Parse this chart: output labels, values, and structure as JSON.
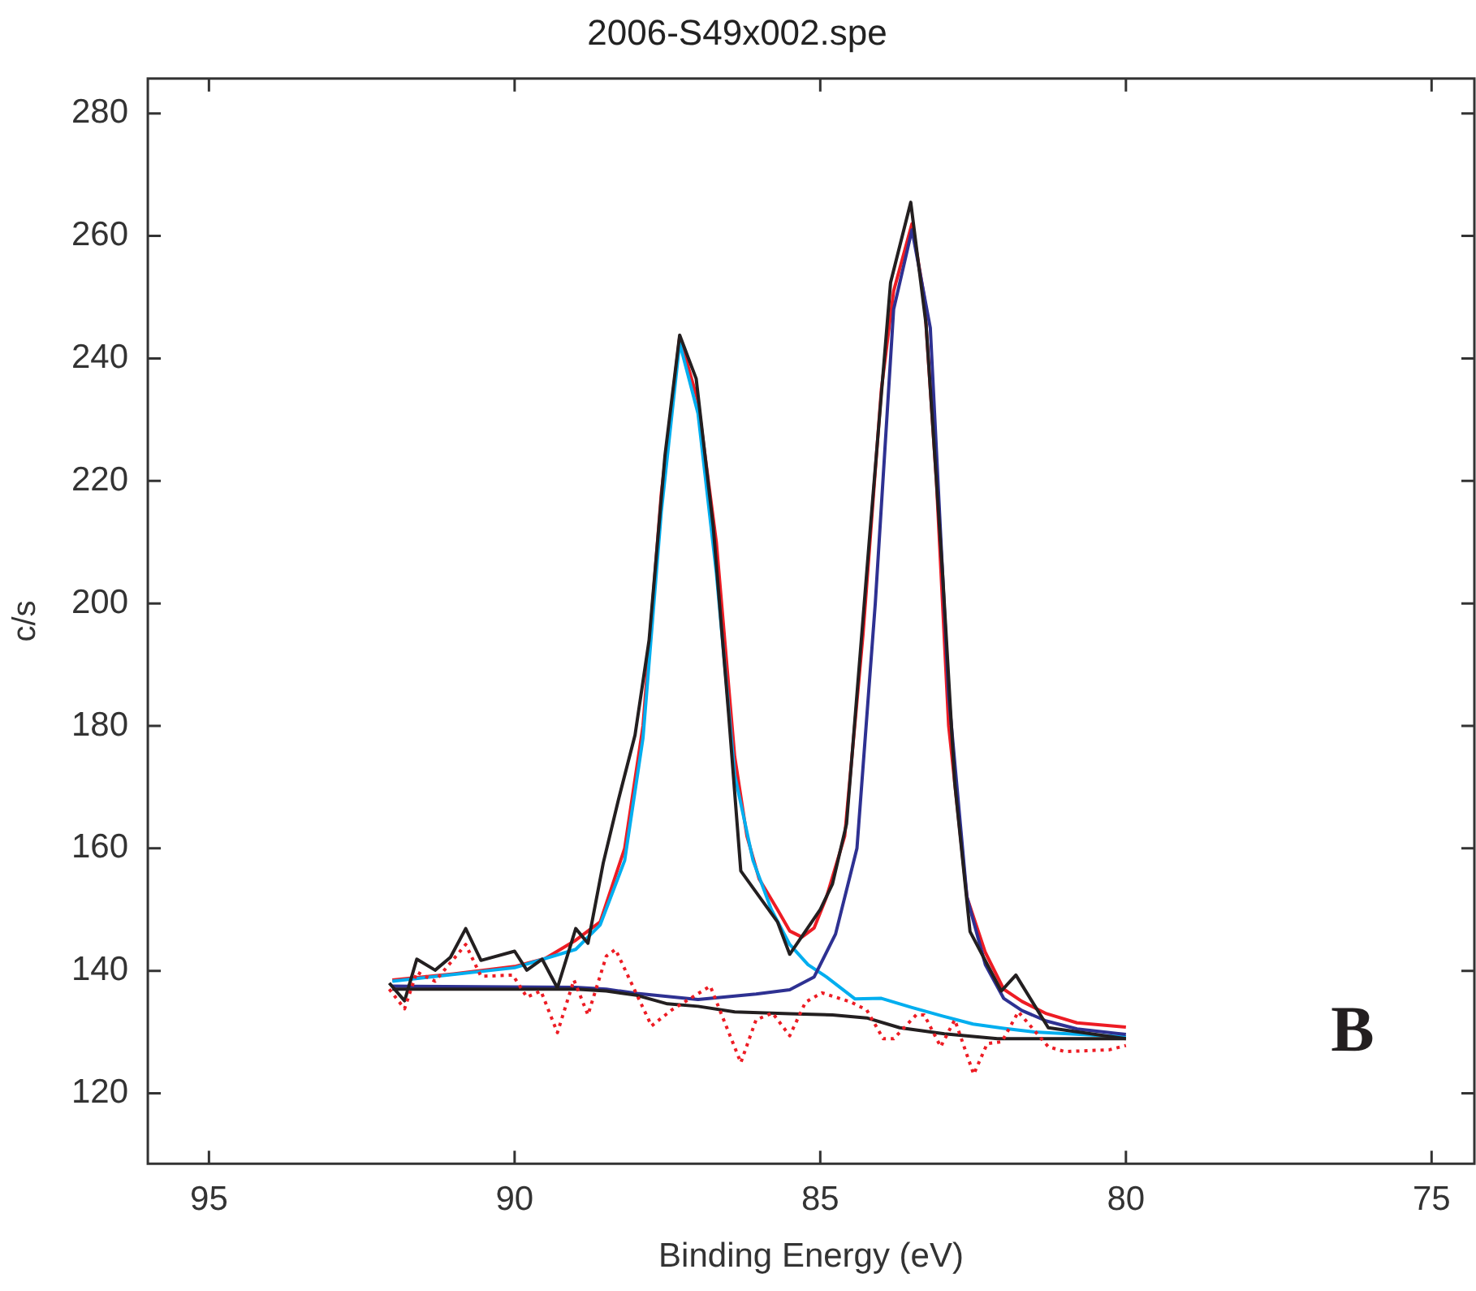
{
  "chart_data": {
    "type": "line",
    "title": "2006-S49x002.spe",
    "xlabel": "Binding Energy (eV)",
    "ylabel": "c/s",
    "xlim": [
      96,
      74.3
    ],
    "xticks": [
      95,
      90,
      85,
      80,
      75
    ],
    "ylim": [
      108.5,
      285.7
    ],
    "yticks": [
      120,
      140,
      160,
      180,
      200,
      220,
      240,
      260,
      280
    ],
    "legend": false,
    "annotations": [
      "B"
    ],
    "series": [
      {
        "color": "#ed1c24",
        "line_style": "dotted",
        "x": [
          92.05,
          91.8,
          91.6,
          91.3,
          90.8,
          90.55,
          90.03,
          89.8,
          89.57,
          89.3,
          89.03,
          88.8,
          88.5,
          88.35,
          87.76,
          87.43,
          86.8,
          86.3,
          86.05,
          85.78,
          85.5,
          85.24,
          84.97,
          84.5,
          84.24,
          83.97,
          83.8,
          83.43,
          83.3,
          83.03,
          82.8,
          82.49,
          82.27,
          82.03,
          81.76,
          81.27,
          81.0,
          80.27,
          80.0
        ],
        "values": [
          137.0,
          133.8,
          139.8,
          138.3,
          144.3,
          139.1,
          139.3,
          135.7,
          136.7,
          129.9,
          138.5,
          132.8,
          142.4,
          143.5,
          131.0,
          133.6,
          137.5,
          125.0,
          132.0,
          133.1,
          129.4,
          134.9,
          136.4,
          134.9,
          133.6,
          128.9,
          128.9,
          132.8,
          132.8,
          127.6,
          132.0,
          123.1,
          128.1,
          128.4,
          133.3,
          127.6,
          126.8,
          127.1,
          127.8
        ]
      },
      {
        "color": "#231f20",
        "x": [
          92.0,
          89.0,
          88.5,
          88.0,
          87.5,
          87.0,
          86.4,
          85.5,
          84.8,
          84.24,
          83.7,
          82.97,
          82.1,
          80.0
        ],
        "values": [
          137.0,
          137.0,
          136.7,
          136.0,
          134.6,
          134.2,
          133.3,
          133.0,
          132.8,
          132.3,
          130.7,
          129.7,
          128.9,
          128.9
        ]
      },
      {
        "color": "#231f20",
        "x": [
          92.05,
          91.8,
          91.6,
          91.3,
          91.05,
          90.8,
          90.55,
          90.0,
          89.8,
          89.55,
          89.3,
          89.0,
          88.8,
          88.55,
          88.3,
          88.03,
          87.8,
          87.54,
          87.3,
          87.03,
          86.75,
          86.5,
          86.3,
          85.7,
          85.5,
          85.0,
          84.8,
          84.57,
          84.2,
          83.85,
          83.52,
          83.27,
          83.0,
          82.8,
          82.55,
          82.04,
          81.8,
          81.27,
          80.0
        ],
        "values": [
          138.0,
          135.1,
          141.9,
          140.1,
          142.2,
          146.9,
          141.7,
          143.2,
          140.1,
          141.9,
          137.2,
          146.9,
          144.5,
          157.6,
          168.0,
          178.5,
          194.0,
          224.2,
          243.8,
          236.7,
          212.4,
          182.0,
          156.3,
          148.0,
          142.7,
          150.0,
          154.2,
          164.0,
          210.0,
          252.4,
          265.5,
          245.6,
          205.0,
          170.6,
          146.4,
          136.7,
          139.3,
          130.7,
          128.9
        ]
      },
      {
        "color": "#2e3192",
        "x": [
          92.0,
          89.0,
          88.5,
          88.0,
          87.0,
          86.05,
          85.5,
          85.1,
          84.75,
          84.4,
          84.1,
          83.8,
          83.5,
          83.2,
          82.9,
          82.6,
          82.3,
          82.0,
          81.7,
          81.3,
          80.8,
          80.0
        ],
        "values": [
          137.5,
          137.3,
          137.0,
          136.3,
          135.3,
          136.2,
          136.9,
          139.0,
          146.0,
          160.0,
          200.0,
          248.0,
          261.0,
          245.0,
          185.0,
          152.0,
          141.0,
          135.5,
          133.5,
          131.8,
          130.5,
          129.6
        ]
      },
      {
        "color": "#00aeef",
        "x": [
          92.0,
          90.0,
          89.0,
          88.6,
          88.2,
          87.9,
          87.6,
          87.3,
          87.0,
          86.7,
          86.4,
          86.1,
          85.8,
          85.5,
          85.2,
          84.9,
          84.43,
          84.0,
          83.5,
          83.0,
          82.5,
          82.0,
          81.5,
          80.0
        ],
        "values": [
          138.3,
          140.5,
          143.5,
          147.5,
          158.0,
          178.0,
          215.0,
          242.5,
          231.0,
          205.0,
          172.0,
          158.0,
          150.0,
          144.3,
          141.0,
          139.0,
          135.4,
          135.5,
          134.0,
          132.6,
          131.3,
          130.6,
          130.0,
          129.2
        ]
      },
      {
        "color": "#ed1c24",
        "x": [
          92.0,
          91.0,
          90.0,
          89.5,
          89.0,
          88.6,
          88.2,
          87.9,
          87.6,
          87.3,
          87.0,
          86.7,
          86.4,
          86.2,
          86.0,
          85.7,
          85.5,
          85.3,
          85.1,
          84.9,
          84.6,
          84.3,
          84.0,
          83.8,
          83.5,
          83.3,
          83.1,
          82.9,
          82.6,
          82.3,
          82.0,
          81.7,
          81.3,
          80.8,
          80.0
        ],
        "values": [
          138.5,
          139.5,
          140.7,
          142.0,
          145.0,
          148.0,
          160.0,
          180.0,
          218.0,
          243.5,
          233.0,
          210.0,
          175.0,
          162.0,
          155.0,
          150.0,
          146.5,
          145.5,
          147.0,
          152.0,
          162.0,
          195.0,
          235.0,
          251.0,
          262.0,
          250.0,
          220.0,
          180.0,
          152.0,
          143.0,
          137.0,
          135.0,
          133.0,
          131.5,
          130.8
        ]
      }
    ]
  }
}
